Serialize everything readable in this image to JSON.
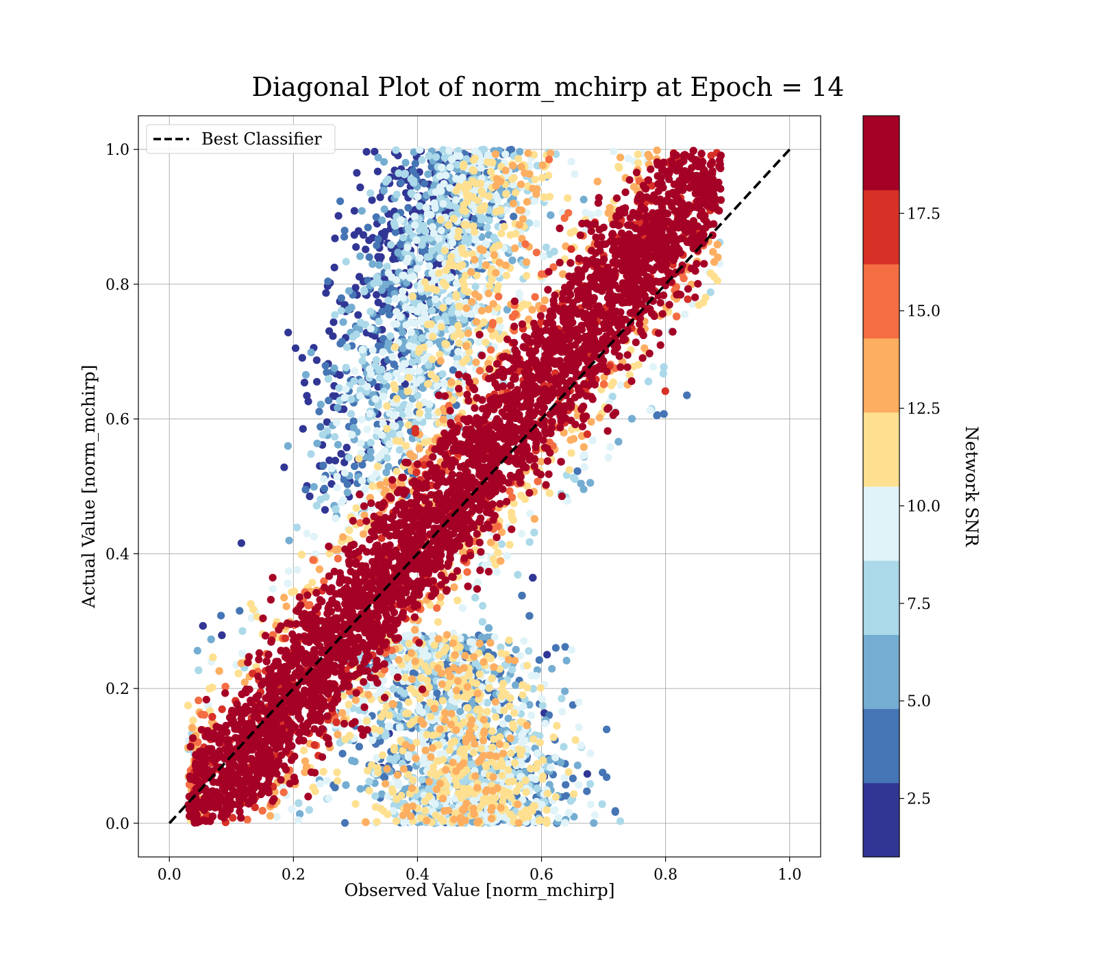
{
  "chart_data": {
    "type": "scatter",
    "title": "Diagonal Plot of norm_mchirp at Epoch = 14",
    "xlabel": "Observed Value [norm_mchirp]",
    "ylabel": "Actual Value [norm_mchirp]",
    "xlim": [
      -0.05,
      1.05
    ],
    "ylim": [
      -0.05,
      1.05
    ],
    "xticks": [
      0.0,
      0.2,
      0.4,
      0.6,
      0.8,
      1.0
    ],
    "yticks": [
      0.0,
      0.2,
      0.4,
      0.6,
      0.8,
      1.0
    ],
    "xtick_labels": [
      "0.0",
      "0.2",
      "0.4",
      "0.6",
      "0.8",
      "1.0"
    ],
    "ytick_labels": [
      "0.0",
      "0.2",
      "0.4",
      "0.6",
      "0.8",
      "1.0"
    ],
    "grid": true,
    "legend": {
      "placement": "top-left",
      "entries": [
        {
          "label": "Best Classifier",
          "style": "dashed",
          "color": "#000000"
        }
      ]
    },
    "reference_line": {
      "x": [
        0.0,
        1.0
      ],
      "y": [
        0.0,
        1.0
      ],
      "style": "dashed",
      "color": "#000000"
    },
    "colorbar": {
      "label": "Network SNR",
      "range": [
        1.0,
        20.0
      ],
      "ticks": [
        2.5,
        5.0,
        7.5,
        10.0,
        12.5,
        15.0,
        17.5
      ],
      "tick_labels": [
        "2.5",
        "5.0",
        "7.5",
        "10.0",
        "12.5",
        "15.0",
        "17.5"
      ],
      "bin_colors": [
        "#313695",
        "#4575b4",
        "#74add1",
        "#abd9e9",
        "#e0f3f8",
        "#fee090",
        "#fdae61",
        "#f46d43",
        "#d73027",
        "#a50026"
      ]
    },
    "point_clusters": [
      {
        "description": "main diagonal band",
        "color_snr": "high",
        "x_range": [
          0.03,
          0.89
        ],
        "y_range": [
          0.0,
          1.0
        ]
      },
      {
        "description": "upper-left low-SNR plume",
        "color_snr": "low",
        "x_range": [
          0.2,
          0.6
        ],
        "y_range": [
          0.45,
          1.0
        ]
      },
      {
        "description": "lower low-SNR plume",
        "color_snr": "low",
        "x_range": [
          0.3,
          0.7
        ],
        "y_range": [
          0.0,
          0.25
        ]
      }
    ]
  }
}
